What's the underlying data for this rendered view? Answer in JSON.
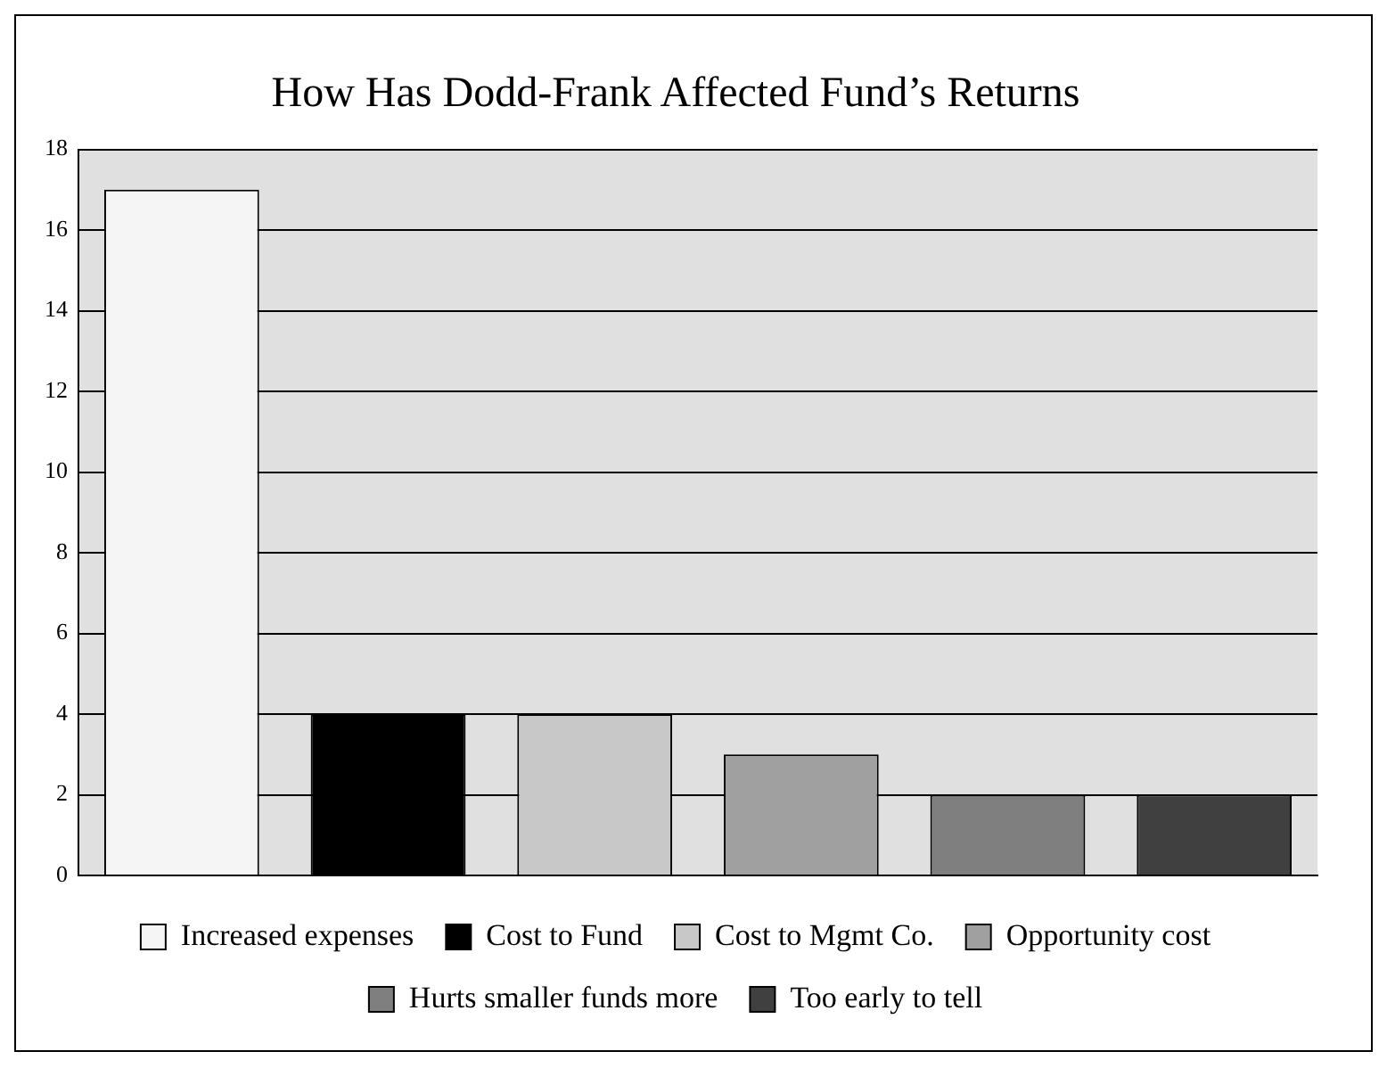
{
  "chart_data": {
    "type": "bar",
    "title": "How Has Dodd-Frank Affected Fund’s Returns",
    "categories": [
      null,
      null,
      null,
      null,
      null,
      null
    ],
    "series": [
      {
        "name": "Increased expenses",
        "color": "#f5f5f5",
        "values": [
          17,
          null,
          null,
          null,
          null,
          null
        ]
      },
      {
        "name": "Cost to Fund",
        "color": "#000000",
        "values": [
          null,
          4,
          null,
          null,
          null,
          null
        ]
      },
      {
        "name": "Cost to Mgmt Co.",
        "color": "#c8c8c8",
        "values": [
          null,
          null,
          4,
          null,
          null,
          null
        ]
      },
      {
        "name": "Opportunity cost",
        "color": "#a0a0a0",
        "values": [
          null,
          null,
          null,
          3,
          null,
          null
        ]
      },
      {
        "name": "Hurts smaller funds more",
        "color": "#7f7f7f",
        "values": [
          null,
          null,
          null,
          null,
          2,
          null
        ]
      },
      {
        "name": "Too early to tell",
        "color": "#404040",
        "values": [
          null,
          null,
          null,
          null,
          null,
          2
        ]
      }
    ],
    "ylim": [
      0,
      18
    ],
    "yticks": [
      0,
      2,
      4,
      6,
      8,
      10,
      12,
      14,
      16,
      18
    ],
    "grid": "y",
    "legend": "bottom"
  }
}
